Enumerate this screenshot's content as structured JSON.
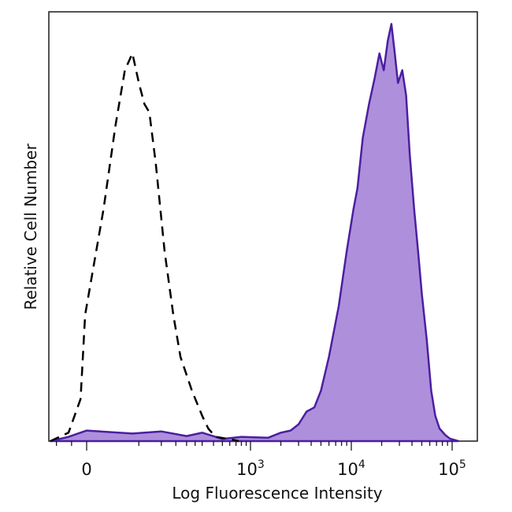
{
  "chart_data": {
    "type": "area",
    "xlabel": "Log Fluorescence Intensity",
    "ylabel": "Relative Cell Number",
    "x_scale": "biexponential (log with linear region around 0)",
    "x_ticks": [
      {
        "value": 0,
        "base": "0",
        "exp": ""
      },
      {
        "value": 1000,
        "base": "10",
        "exp": "3"
      },
      {
        "value": 10000,
        "base": "10",
        "exp": "4"
      },
      {
        "value": 100000,
        "base": "10",
        "exp": "5"
      }
    ],
    "ylim": [
      0,
      100
    ],
    "grid": false,
    "series": [
      {
        "style": "dashed",
        "color": "#000000",
        "fill": "none",
        "points": [
          [
            -120,
            0
          ],
          [
            -60,
            2
          ],
          [
            -20,
            10
          ],
          [
            -5,
            30
          ],
          [
            10,
            55
          ],
          [
            20,
            75
          ],
          [
            30,
            88
          ],
          [
            40,
            92
          ],
          [
            50,
            85
          ],
          [
            60,
            80
          ],
          [
            70,
            78
          ],
          [
            85,
            66
          ],
          [
            110,
            45
          ],
          [
            140,
            30
          ],
          [
            170,
            20
          ],
          [
            230,
            12
          ],
          [
            300,
            6
          ],
          [
            350,
            3
          ],
          [
            420,
            1
          ],
          [
            550,
            0.6
          ],
          [
            650,
            0.3
          ],
          [
            750,
            0
          ]
        ]
      },
      {
        "style": "solid",
        "color": "#4B1FA0",
        "fill": "#AE8FDC",
        "points": [
          [
            -120,
            0
          ],
          [
            -60,
            1
          ],
          [
            0,
            2.5
          ],
          [
            40,
            1.8
          ],
          [
            100,
            2.3
          ],
          [
            200,
            1.2
          ],
          [
            300,
            2
          ],
          [
            500,
            0.5
          ],
          [
            800,
            1
          ],
          [
            1500,
            0.8
          ],
          [
            2000,
            2
          ],
          [
            2500,
            2.5
          ],
          [
            3000,
            4
          ],
          [
            3600,
            7
          ],
          [
            4300,
            8
          ],
          [
            5000,
            12
          ],
          [
            6000,
            20
          ],
          [
            7500,
            32
          ],
          [
            9000,
            45
          ],
          [
            10500,
            55
          ],
          [
            11500,
            60
          ],
          [
            13000,
            72
          ],
          [
            15000,
            80
          ],
          [
            17000,
            86
          ],
          [
            19000,
            92
          ],
          [
            21000,
            88
          ],
          [
            23000,
            95
          ],
          [
            25000,
            99
          ],
          [
            27000,
            92
          ],
          [
            29000,
            85
          ],
          [
            32000,
            88
          ],
          [
            35000,
            82
          ],
          [
            38000,
            68
          ],
          [
            42000,
            55
          ],
          [
            46000,
            45
          ],
          [
            50000,
            35
          ],
          [
            56000,
            24
          ],
          [
            62000,
            12
          ],
          [
            68000,
            6
          ],
          [
            75000,
            3
          ],
          [
            85000,
            1.5
          ],
          [
            95000,
            0.6
          ],
          [
            115000,
            0
          ]
        ]
      }
    ]
  }
}
